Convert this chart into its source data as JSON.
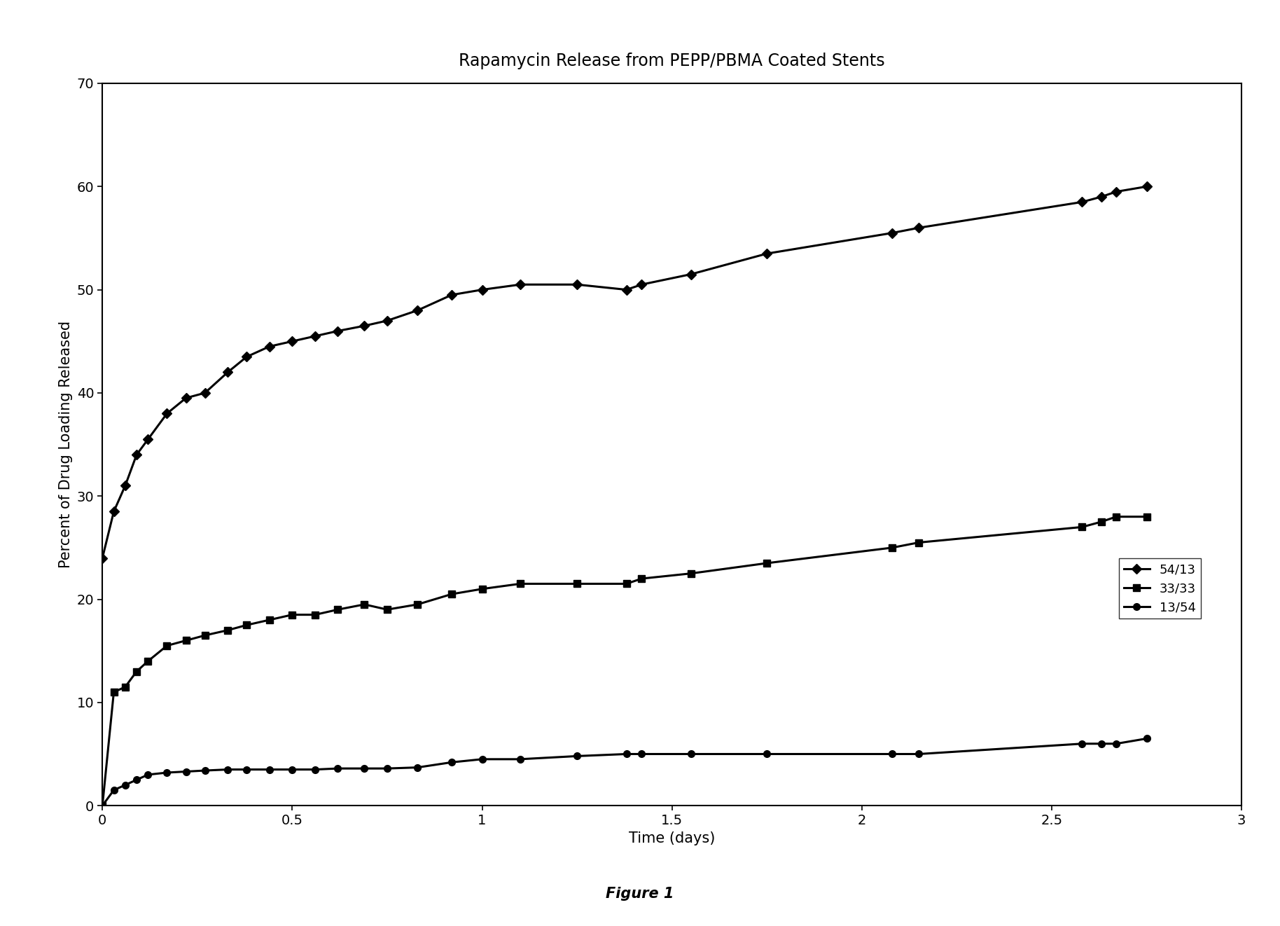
{
  "title": "Rapamycin Release from PEPP/PBMA Coated Stents",
  "xlabel": "Time (days)",
  "ylabel": "Percent of Drug Loading Released",
  "figure_caption": "Figure 1",
  "xlim": [
    0,
    3
  ],
  "ylim": [
    0,
    70
  ],
  "xticks": [
    0,
    0.5,
    1,
    1.5,
    2,
    2.5,
    3
  ],
  "xtick_labels": [
    "0",
    "0.5",
    "1",
    "1.5",
    "2",
    "2.5",
    "3"
  ],
  "yticks": [
    0,
    10,
    20,
    30,
    40,
    50,
    60,
    70
  ],
  "series": [
    {
      "label": "54/13",
      "marker": "D",
      "markersize": 7,
      "linewidth": 2.2,
      "color": "#000000",
      "x": [
        0.0,
        0.03,
        0.06,
        0.09,
        0.12,
        0.17,
        0.22,
        0.27,
        0.33,
        0.38,
        0.44,
        0.5,
        0.56,
        0.62,
        0.69,
        0.75,
        0.83,
        0.92,
        1.0,
        1.1,
        1.25,
        1.38,
        1.42,
        1.55,
        1.75,
        2.08,
        2.15,
        2.58,
        2.63,
        2.67,
        2.75
      ],
      "y": [
        24.0,
        28.5,
        31.0,
        34.0,
        35.5,
        38.0,
        39.5,
        40.0,
        42.0,
        43.5,
        44.5,
        45.0,
        45.5,
        46.0,
        46.5,
        47.0,
        48.0,
        49.5,
        50.0,
        50.5,
        50.5,
        50.0,
        50.5,
        51.5,
        53.5,
        55.5,
        56.0,
        58.5,
        59.0,
        59.5,
        60.0
      ]
    },
    {
      "label": "33/33",
      "marker": "s",
      "markersize": 7,
      "linewidth": 2.2,
      "color": "#000000",
      "x": [
        0.0,
        0.03,
        0.06,
        0.09,
        0.12,
        0.17,
        0.22,
        0.27,
        0.33,
        0.38,
        0.44,
        0.5,
        0.56,
        0.62,
        0.69,
        0.75,
        0.83,
        0.92,
        1.0,
        1.1,
        1.25,
        1.38,
        1.42,
        1.55,
        1.75,
        2.08,
        2.15,
        2.58,
        2.63,
        2.67,
        2.75
      ],
      "y": [
        0.0,
        11.0,
        11.5,
        13.0,
        14.0,
        15.5,
        16.0,
        16.5,
        17.0,
        17.5,
        18.0,
        18.5,
        18.5,
        19.0,
        19.5,
        19.0,
        19.5,
        20.5,
        21.0,
        21.5,
        21.5,
        21.5,
        22.0,
        22.5,
        23.5,
        25.0,
        25.5,
        27.0,
        27.5,
        28.0,
        28.0
      ]
    },
    {
      "label": "13/54",
      "marker": "o",
      "markersize": 7,
      "linewidth": 2.2,
      "color": "#000000",
      "x": [
        0.0,
        0.03,
        0.06,
        0.09,
        0.12,
        0.17,
        0.22,
        0.27,
        0.33,
        0.38,
        0.44,
        0.5,
        0.56,
        0.62,
        0.69,
        0.75,
        0.83,
        0.92,
        1.0,
        1.1,
        1.25,
        1.38,
        1.42,
        1.55,
        1.75,
        2.08,
        2.15,
        2.58,
        2.63,
        2.67,
        2.75
      ],
      "y": [
        0.0,
        1.5,
        2.0,
        2.5,
        3.0,
        3.2,
        3.3,
        3.4,
        3.5,
        3.5,
        3.5,
        3.5,
        3.5,
        3.6,
        3.6,
        3.6,
        3.7,
        4.2,
        4.5,
        4.5,
        4.8,
        5.0,
        5.0,
        5.0,
        5.0,
        5.0,
        5.0,
        6.0,
        6.0,
        6.0,
        6.5
      ]
    }
  ],
  "background_color": "#ffffff",
  "title_fontsize": 17,
  "label_fontsize": 15,
  "tick_fontsize": 14,
  "legend_fontsize": 13,
  "caption_fontsize": 15
}
